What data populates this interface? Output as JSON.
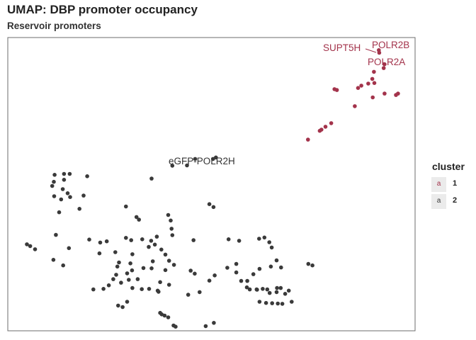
{
  "chart_data": {
    "type": "scatter",
    "title": "UMAP: DBP promoter occupancy",
    "subtitle": "Reservoir promoters",
    "xlabel": "",
    "ylabel": "",
    "xlim": [
      0,
      100
    ],
    "ylim": [
      0,
      100
    ],
    "grid": false,
    "legend": {
      "title": "cluster",
      "placement": "right"
    },
    "series": [
      {
        "name": "1",
        "color": "#a3334b",
        "points": [
          [
            91.1,
            95.7
          ],
          [
            91.2,
            94.8
          ],
          [
            92.5,
            90.9
          ],
          [
            92.3,
            89.6
          ],
          [
            89.9,
            88.3
          ],
          [
            88.5,
            84.3
          ],
          [
            86.8,
            83.6
          ],
          [
            89.5,
            85.9
          ],
          [
            90.0,
            84.5
          ],
          [
            86.0,
            82.8
          ],
          [
            80.2,
            82.4
          ],
          [
            80.8,
            82.1
          ],
          [
            89.6,
            79.6
          ],
          [
            92.5,
            80.9
          ],
          [
            95.3,
            80.4
          ],
          [
            95.8,
            80.9
          ],
          [
            85.2,
            76.6
          ],
          [
            79.4,
            70.8
          ],
          [
            78.0,
            69.6
          ],
          [
            77.0,
            68.6
          ],
          [
            76.6,
            68.2
          ],
          [
            73.7,
            65.2
          ]
        ]
      },
      {
        "name": "2",
        "color": "#3a3a3a",
        "points": [
          [
            51.1,
            59.1
          ],
          [
            50.4,
            58.6
          ],
          [
            46.0,
            58.6
          ],
          [
            44.0,
            56.4
          ],
          [
            40.4,
            56.3
          ],
          [
            35.3,
            51.9
          ],
          [
            11.5,
            53.2
          ],
          [
            13.8,
            53.5
          ],
          [
            15.2,
            53.5
          ],
          [
            19.5,
            52.7
          ],
          [
            13.8,
            51.5
          ],
          [
            11.3,
            50.8
          ],
          [
            10.9,
            49.4
          ],
          [
            13.5,
            48.3
          ],
          [
            14.7,
            46.9
          ],
          [
            18.6,
            46.1
          ],
          [
            15.3,
            45.6
          ],
          [
            13.1,
            44.8
          ],
          [
            11.4,
            45.9
          ],
          [
            17.6,
            41.6
          ],
          [
            12.6,
            40.4
          ],
          [
            29.0,
            42.4
          ],
          [
            31.6,
            38.8
          ],
          [
            49.5,
            43.2
          ],
          [
            50.5,
            42.2
          ],
          [
            39.4,
            39.5
          ],
          [
            40.0,
            37.6
          ],
          [
            40.2,
            34.8
          ],
          [
            32.2,
            37.9
          ],
          [
            11.8,
            32.7
          ],
          [
            15.0,
            28.2
          ],
          [
            4.7,
            29.5
          ],
          [
            5.5,
            28.9
          ],
          [
            6.7,
            27.8
          ],
          [
            11.2,
            24.2
          ],
          [
            13.6,
            22.3
          ],
          [
            20.0,
            31.1
          ],
          [
            22.7,
            30.1
          ],
          [
            24.3,
            30.5
          ],
          [
            22.5,
            26.4
          ],
          [
            29.0,
            31.7
          ],
          [
            30.3,
            30.9
          ],
          [
            33.0,
            31.2
          ],
          [
            35.2,
            30.7
          ],
          [
            36.6,
            32.1
          ],
          [
            36.1,
            29.4
          ],
          [
            40.4,
            32.6
          ],
          [
            45.6,
            30.9
          ],
          [
            37.7,
            27.7
          ],
          [
            38.7,
            26.0
          ],
          [
            34.6,
            28.6
          ],
          [
            30.6,
            26.1
          ],
          [
            26.4,
            26.8
          ],
          [
            27.3,
            23.3
          ],
          [
            30.1,
            23.0
          ],
          [
            35.6,
            23.7
          ],
          [
            39.6,
            23.9
          ],
          [
            40.8,
            22.5
          ],
          [
            38.7,
            20.7
          ],
          [
            35.3,
            21.3
          ],
          [
            33.3,
            21.4
          ],
          [
            30.5,
            20.6
          ],
          [
            29.3,
            19.6
          ],
          [
            26.9,
            21.9
          ],
          [
            26.6,
            19.1
          ],
          [
            25.9,
            17.6
          ],
          [
            27.8,
            16.4
          ],
          [
            31.9,
            17.6
          ],
          [
            37.4,
            16.6
          ],
          [
            39.6,
            15.7
          ],
          [
            36.8,
            13.7
          ],
          [
            34.7,
            14.3
          ],
          [
            32.9,
            14.2
          ],
          [
            29.7,
            17.4
          ],
          [
            24.8,
            15.5
          ],
          [
            21.0,
            14.1
          ],
          [
            23.5,
            14.3
          ],
          [
            29.3,
            9.9
          ],
          [
            28.2,
            8.1
          ],
          [
            27.1,
            8.6
          ],
          [
            30.6,
            14.6
          ],
          [
            37.0,
            13.3
          ],
          [
            37.4,
            6.1
          ],
          [
            37.8,
            5.6
          ],
          [
            38.5,
            5.2
          ],
          [
            39.4,
            4.6
          ],
          [
            40.7,
            1.8
          ],
          [
            41.2,
            1.4
          ],
          [
            48.6,
            1.6
          ],
          [
            50.6,
            2.7
          ],
          [
            44.3,
            12.3
          ],
          [
            47.1,
            13.2
          ],
          [
            54.2,
            31.2
          ],
          [
            56.8,
            30.7
          ],
          [
            61.7,
            31.4
          ],
          [
            63.0,
            31.8
          ],
          [
            64.2,
            30.2
          ],
          [
            64.8,
            28.4
          ],
          [
            73.8,
            22.8
          ],
          [
            74.8,
            22.3
          ],
          [
            66.0,
            24.0
          ],
          [
            67.1,
            21.6
          ],
          [
            64.6,
            21.9
          ],
          [
            61.8,
            21.1
          ],
          [
            60.3,
            19.3
          ],
          [
            58.8,
            17.0
          ],
          [
            57.3,
            17.0
          ],
          [
            56.1,
            19.9
          ],
          [
            56.1,
            22.8
          ],
          [
            53.9,
            21.5
          ],
          [
            50.8,
            18.9
          ],
          [
            49.5,
            17.1
          ],
          [
            44.9,
            20.5
          ],
          [
            45.9,
            19.5
          ],
          [
            58.7,
            14.8
          ],
          [
            59.4,
            14.1
          ],
          [
            61.1,
            14.1
          ],
          [
            61.2,
            14.0
          ],
          [
            62.6,
            14.3
          ],
          [
            63.7,
            14.1
          ],
          [
            64.3,
            12.9
          ],
          [
            66.1,
            14.6
          ],
          [
            67.0,
            14.6
          ],
          [
            66.0,
            13.2
          ],
          [
            69.0,
            13.7
          ],
          [
            69.7,
            9.9
          ],
          [
            61.8,
            9.9
          ],
          [
            63.4,
            9.5
          ],
          [
            64.9,
            9.4
          ],
          [
            66.3,
            9.3
          ],
          [
            67.4,
            9.2
          ],
          [
            68.1,
            12.6
          ]
        ]
      }
    ],
    "annotations": [
      {
        "text": "SUPT5H",
        "color": "#a3334b"
      },
      {
        "text": "POLR2B",
        "color": "#a3334b"
      },
      {
        "text": "POLR2A",
        "color": "#a3334b"
      },
      {
        "text": "eGFP-POLR2H",
        "color": "#333333"
      }
    ]
  }
}
